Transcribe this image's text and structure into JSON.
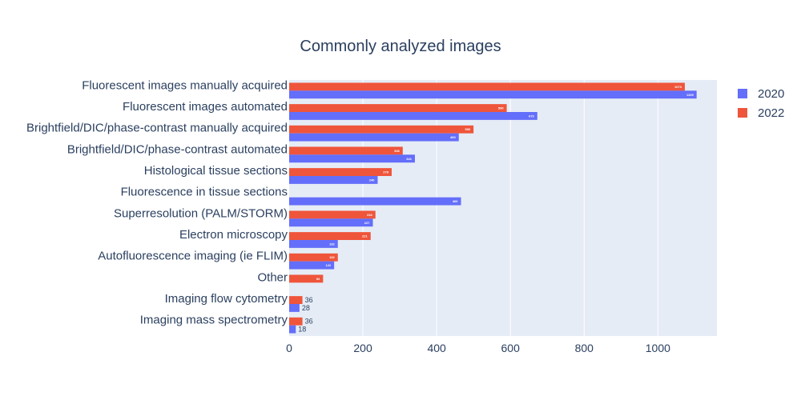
{
  "chart_data": {
    "type": "bar",
    "orientation": "horizontal",
    "title": "Commonly analyzed images",
    "xlabel": "",
    "ylabel": "",
    "xlim": [
      0,
      1160
    ],
    "xticks": [
      0,
      200,
      400,
      600,
      800,
      1000
    ],
    "grid": true,
    "legend_position": "top-right",
    "categories": [
      "Fluorescent images manually acquired",
      "Fluorescent images automated",
      "Brightfield/DIC/phase-contrast manually acquired",
      "Brightfield/DIC/phase-contrast automated",
      "Histological tissue sections",
      "Fluorescence in tissue sections",
      "Superresolution (PALM/STORM)",
      "Electron microscopy",
      "Autofluorescence imaging (ie FLIM)",
      "Other",
      "Imaging flow cytometry",
      "Imaging mass spectrometry"
    ],
    "series": [
      {
        "name": "2020",
        "color": "#636efa",
        "values": [
          1105,
          673,
          460,
          341,
          240,
          466,
          227,
          132,
          122,
          null,
          28,
          18
        ],
        "labels": [
          "1105",
          "673",
          "460",
          "341",
          "240",
          "466",
          "227",
          "132",
          "122",
          "",
          "28",
          "18"
        ]
      },
      {
        "name": "2022",
        "color": "#ef553b",
        "values": [
          1073,
          590,
          500,
          308,
          278,
          null,
          234,
          221,
          132,
          92,
          36,
          36
        ],
        "labels": [
          "1073",
          "590",
          "500",
          "308",
          "278",
          "",
          "234",
          "221",
          "132",
          "92",
          "36",
          "36"
        ]
      }
    ]
  }
}
